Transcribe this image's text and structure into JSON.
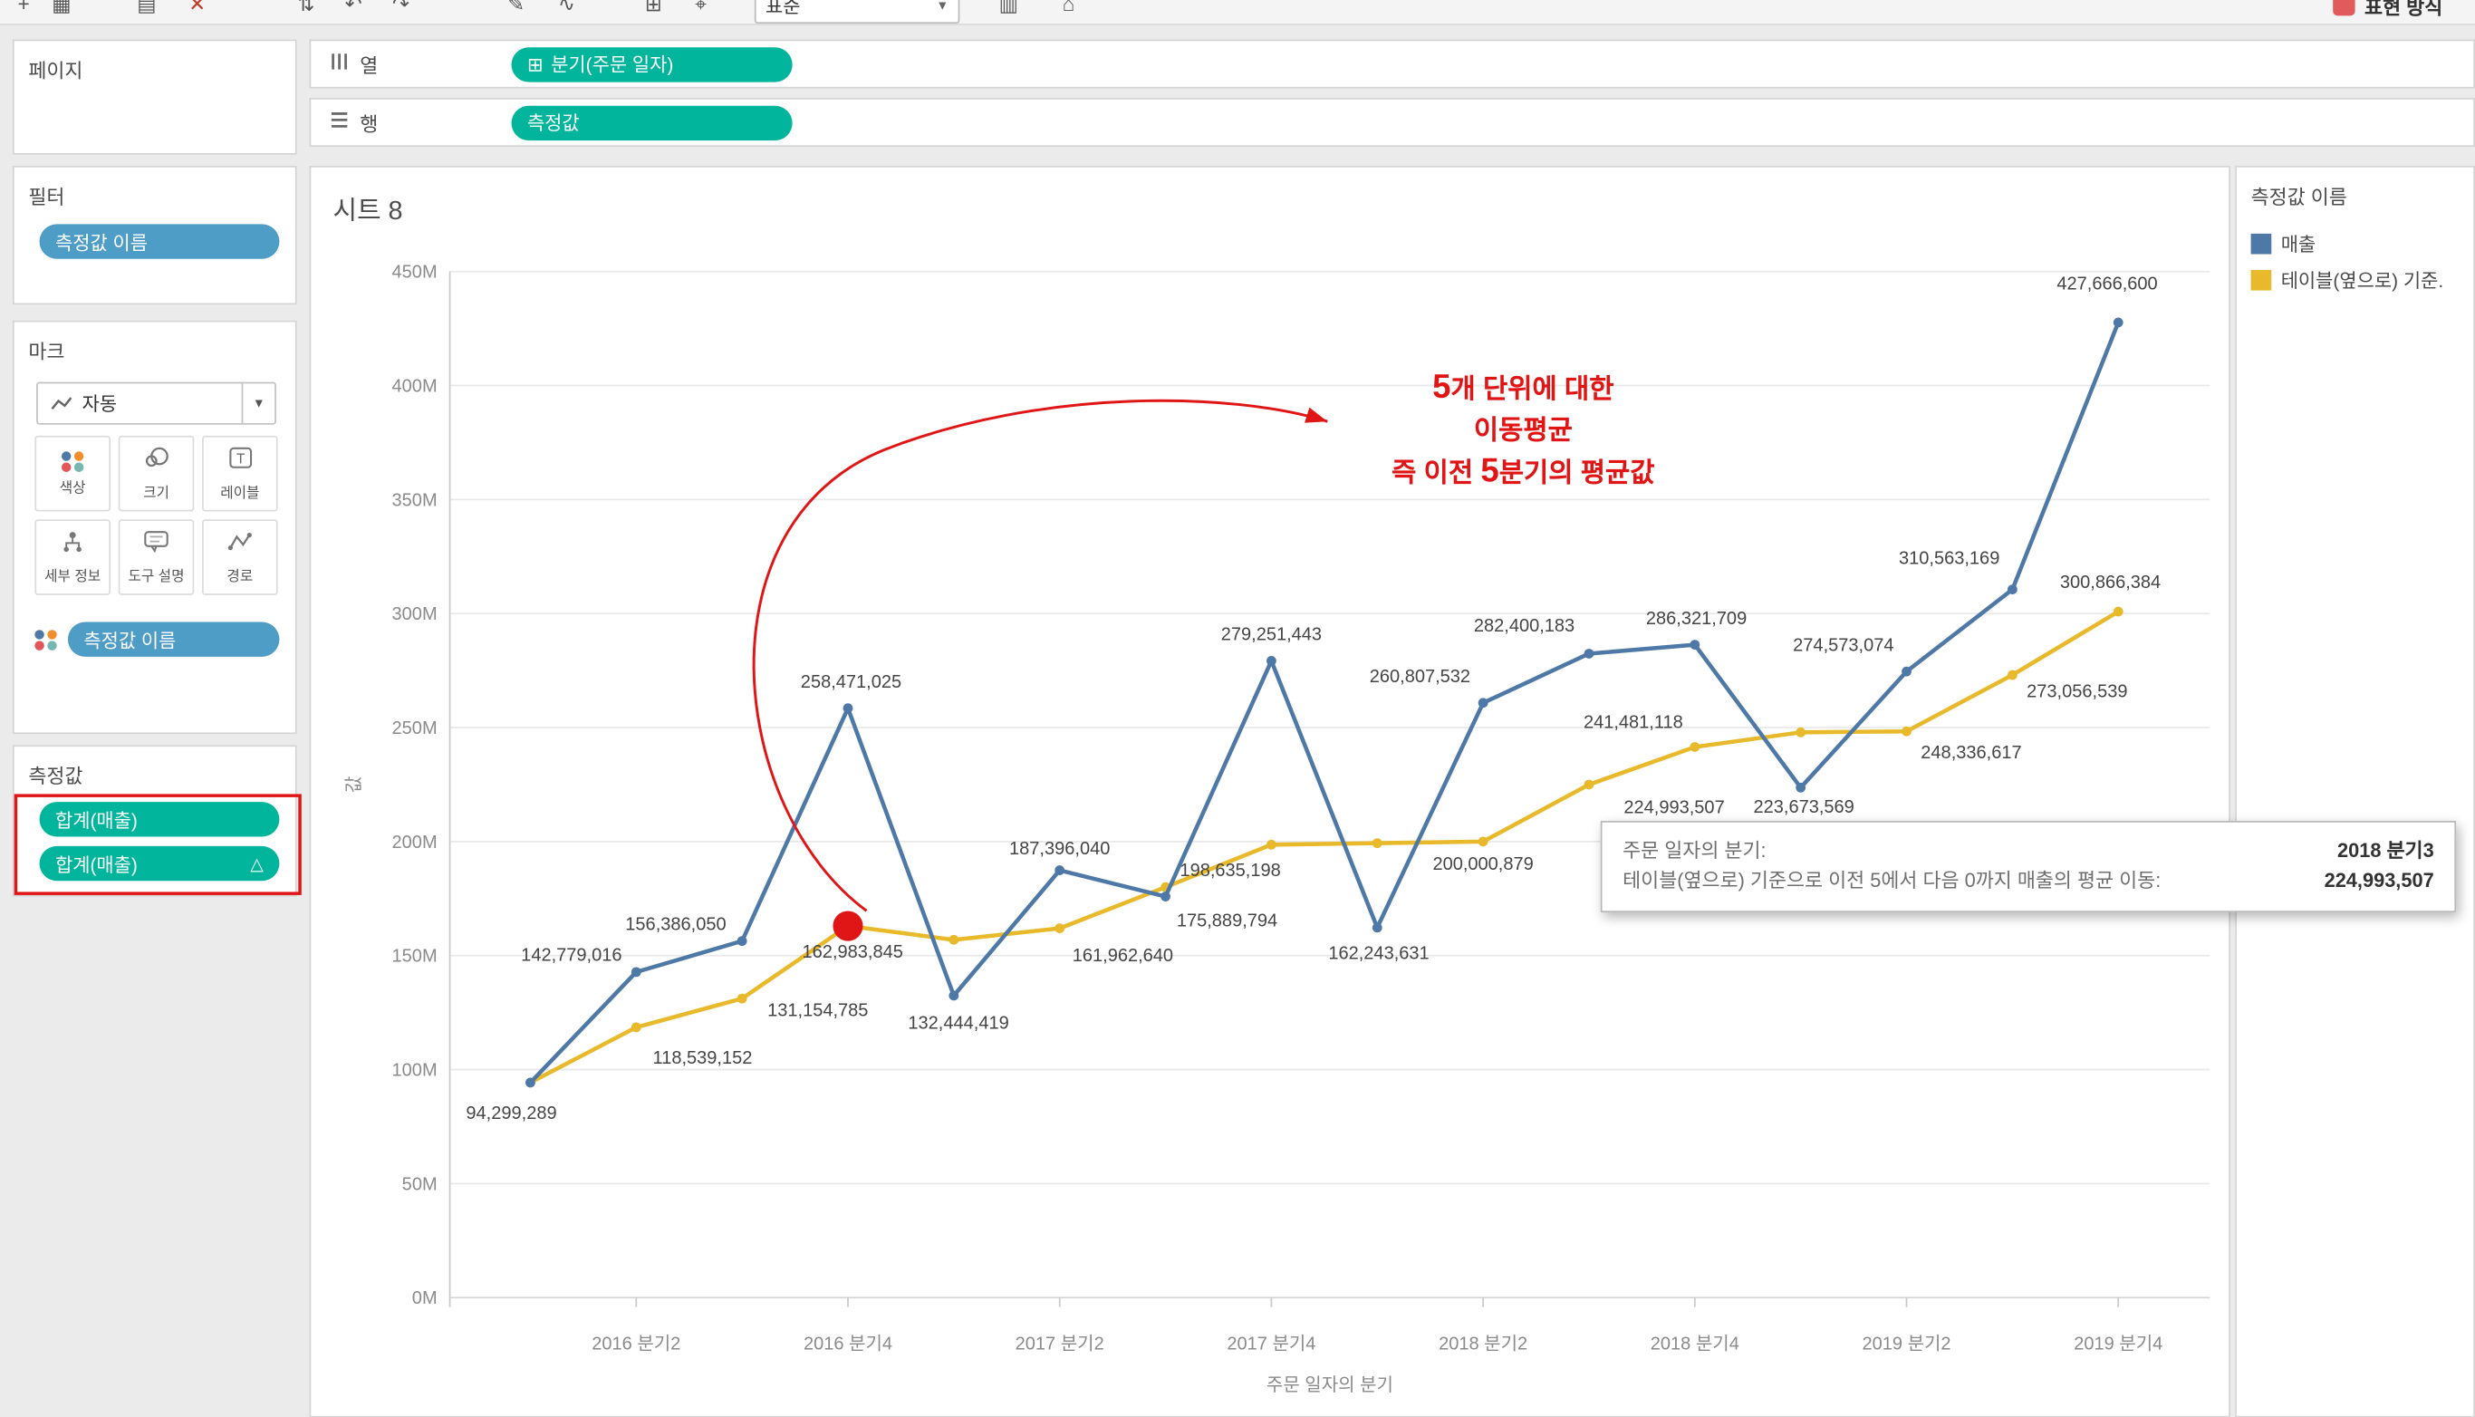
{
  "colors": {
    "pill_green": "#00b59b",
    "pill_blue": "#4e9dc6",
    "series_blue": "#4e79a7",
    "series_yellow": "#e8b92a",
    "annotation_red": "#e01515"
  },
  "toolbar": {
    "fit_label": "표준",
    "show_me_label": "표현 방식"
  },
  "sidebar": {
    "pages_title": "페이지",
    "filters_title": "필터",
    "filter_pill": "측정값 이름",
    "marks_title": "마크",
    "mark_type": "자동",
    "marks_buttons": [
      {
        "label": "색상"
      },
      {
        "label": "크기"
      },
      {
        "label": "레이블"
      },
      {
        "label": "세부 정보"
      },
      {
        "label": "도구 설명"
      },
      {
        "label": "경로"
      }
    ],
    "marks_pill": "측정값 이름",
    "measures_title": "측정값",
    "measure_pills": [
      {
        "label": "합계(매출)",
        "delta": ""
      },
      {
        "label": "합계(매출)",
        "delta": "△"
      }
    ]
  },
  "shelves": {
    "columns_label": "열",
    "columns_pill_icon": "⊞",
    "columns_pill": "분기(주문 일자)",
    "rows_label": "행",
    "rows_pill": "측정값"
  },
  "sheet_title": "시트 8",
  "legend": {
    "title": "측정값 이름",
    "items": [
      {
        "label": "매출",
        "color": "#4e79a7"
      },
      {
        "label": "테이블(옆으로) 기준.",
        "color": "#e8b92a"
      }
    ]
  },
  "annotation": {
    "lines": [
      "5개 단위에 대한",
      "이동평균",
      "즉 이전 5분기의 평균값"
    ],
    "highlight_series": 1,
    "highlight_index": 3
  },
  "tooltip": {
    "row1_label": "주문 일자의 분기:",
    "row1_value": "2018 분기3",
    "row2_label": "테이블(옆으로) 기준으로 이전 5에서 다음 0까지 매출의 평균 이동:",
    "row2_value": "224,993,507"
  },
  "chart_data": {
    "type": "line",
    "title": "시트 8",
    "xlabel": "주문 일자의 분기",
    "ylabel": "값",
    "ylim": [
      0,
      450000000
    ],
    "ytick_step": 50000000,
    "ytick_labels": [
      "0M",
      "50M",
      "100M",
      "150M",
      "200M",
      "250M",
      "300M",
      "350M",
      "400M",
      "450M"
    ],
    "categories": [
      "2016 분기1",
      "2016 분기2",
      "2016 분기3",
      "2016 분기4",
      "2017 분기1",
      "2017 분기2",
      "2017 분기3",
      "2017 분기4",
      "2018 분기1",
      "2018 분기2",
      "2018 분기3",
      "2018 분기4",
      "2019 분기1",
      "2019 분기2",
      "2019 분기3",
      "2019 분기4"
    ],
    "xtick_indices": [
      1,
      3,
      5,
      7,
      9,
      11,
      13,
      15
    ],
    "xtick_labels": [
      "2016 분기2",
      "2016 분기4",
      "2017 분기2",
      "2017 분기4",
      "2018 분기2",
      "2018 분기4",
      "2019 분기2",
      "2019 분기4"
    ],
    "grid": "horizontal",
    "legend_position": "right",
    "series": [
      {
        "name": "매출",
        "color": "#4e79a7",
        "values": [
          94299289,
          142779016,
          156386050,
          258471025,
          132444419,
          187396040,
          175889794,
          279251443,
          162243631,
          260807532,
          282400183,
          286321709,
          223673569,
          274573074,
          310563169,
          427666600
        ],
        "labels": [
          "94,299,289",
          "142,779,016",
          "156,386,050",
          "258,471,025",
          "132,444,419",
          "187,396,040",
          "175,889,794",
          "279,251,443",
          "162,243,631",
          "260,807,532",
          "282,400,183",
          "286,321,709",
          "223,673,569",
          "274,573,074",
          "310,563,169",
          "427,666,600"
        ],
        "label_offsets": [
          [
            -12,
            23
          ],
          [
            -41,
            -7
          ],
          [
            -42,
            -7
          ],
          [
            2,
            -13
          ],
          [
            3,
            21
          ],
          [
            0,
            -10
          ],
          [
            39,
            19
          ],
          [
            0,
            -13
          ],
          [
            1,
            20
          ],
          [
            -40,
            -13
          ],
          [
            -41,
            -14
          ],
          [
            1,
            -13
          ],
          [
            2,
            16
          ],
          [
            -40,
            -13
          ],
          [
            -40,
            -16
          ],
          [
            -7,
            -21
          ]
        ]
      },
      {
        "name": "테이블(옆으로) 기준으로 이전 5에서 다음 0까지 매출의 평균 이동",
        "color": "#e8b92a",
        "values": [
          94299289,
          118539152,
          131154785,
          162983845,
          156900000,
          161962640,
          180000000,
          198635198,
          199300000,
          200000879,
          224993507,
          241481118,
          247900000,
          248336617,
          273056539,
          300866384
        ],
        "labels": [
          "",
          "118,539,152",
          "131,154,785",
          "162,983,845",
          "",
          "161,962,640",
          "",
          "198,635,198",
          "",
          "200,000,879",
          "224,993,507",
          "241,481,118",
          "",
          "248,336,617",
          "273,056,539",
          "300,866,384"
        ],
        "label_offsets": [
          [
            0,
            0
          ],
          [
            42,
            23
          ],
          [
            48,
            11
          ],
          [
            3,
            20
          ],
          [
            0,
            0
          ],
          [
            40,
            21
          ],
          [
            0,
            0
          ],
          [
            -26,
            20
          ],
          [
            0,
            0
          ],
          [
            0,
            18
          ],
          [
            54,
            18
          ],
          [
            -39,
            -12
          ],
          [
            0,
            0
          ],
          [
            41,
            17
          ],
          [
            41,
            14
          ],
          [
            -5,
            -15
          ]
        ]
      }
    ]
  }
}
